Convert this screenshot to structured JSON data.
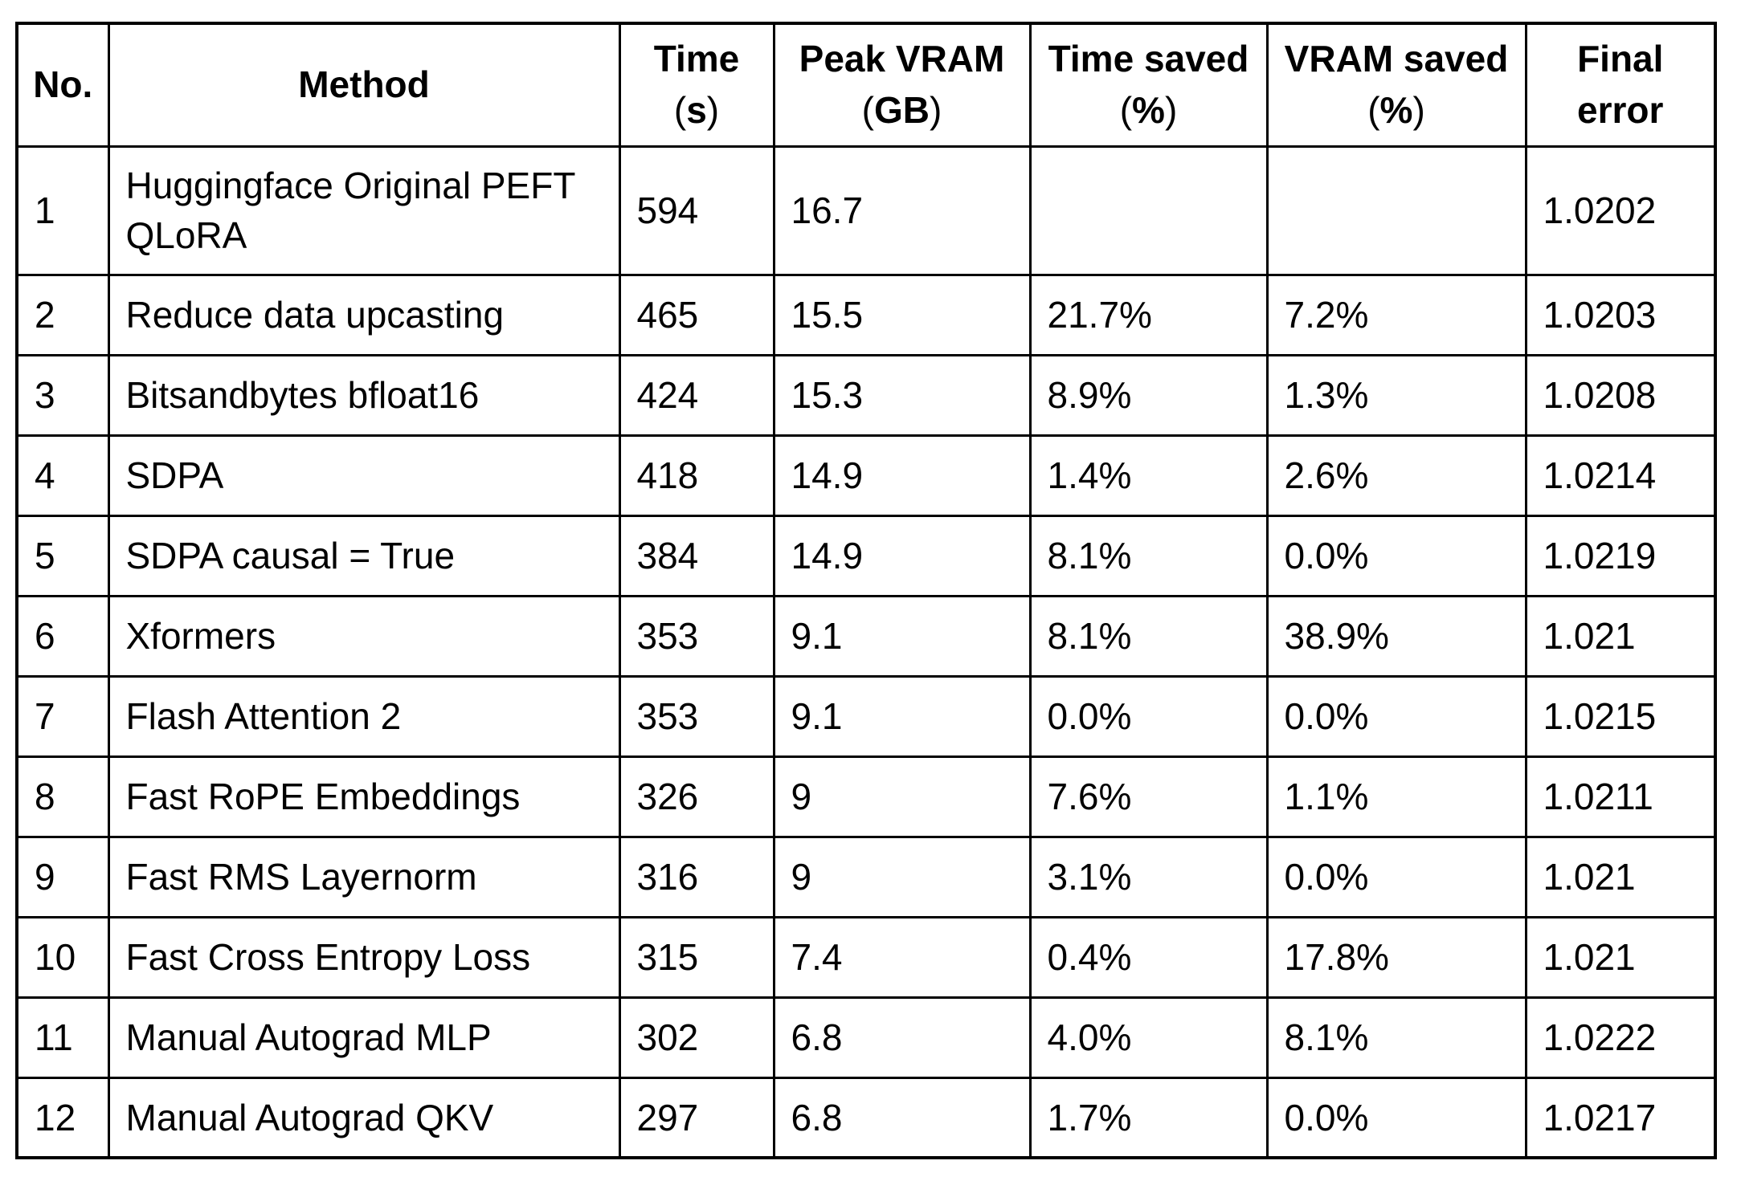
{
  "colors": {
    "border": "#000000",
    "text": "#000000",
    "background": "#ffffff"
  },
  "chart_data": {
    "type": "table",
    "columns": [
      {
        "id": "no",
        "line1": "No.",
        "line2": ""
      },
      {
        "id": "method",
        "line1": "Method",
        "line2": ""
      },
      {
        "id": "time",
        "line1": "Time",
        "line2": "(s)"
      },
      {
        "id": "peak_vram",
        "line1": "Peak VRAM",
        "line2": "(GB)"
      },
      {
        "id": "time_saved",
        "line1": "Time saved",
        "line2": "(%)"
      },
      {
        "id": "vram_saved",
        "line1": "VRAM saved",
        "line2": "(%)"
      },
      {
        "id": "final_error",
        "line1": "Final",
        "line2": "error"
      }
    ],
    "rows": [
      [
        "1",
        "Huggingface Original PEFT\nQLoRA",
        "594",
        "16.7",
        "",
        "",
        "1.0202"
      ],
      [
        "2",
        "Reduce data upcasting",
        "465",
        "15.5",
        "21.7%",
        "7.2%",
        "1.0203"
      ],
      [
        "3",
        "Bitsandbytes bfloat16",
        "424",
        "15.3",
        "8.9%",
        "1.3%",
        "1.0208"
      ],
      [
        "4",
        "SDPA",
        "418",
        "14.9",
        "1.4%",
        "2.6%",
        "1.0214"
      ],
      [
        "5",
        "SDPA causal = True",
        "384",
        "14.9",
        "8.1%",
        "0.0%",
        "1.0219"
      ],
      [
        "6",
        "Xformers",
        "353",
        "9.1",
        "8.1%",
        "38.9%",
        "1.021"
      ],
      [
        "7",
        "Flash Attention 2",
        "353",
        "9.1",
        "0.0%",
        "0.0%",
        "1.0215"
      ],
      [
        "8",
        "Fast RoPE Embeddings",
        "326",
        "9",
        "7.6%",
        "1.1%",
        "1.0211"
      ],
      [
        "9",
        "Fast RMS Layernorm",
        "316",
        "9",
        "3.1%",
        "0.0%",
        "1.021"
      ],
      [
        "10",
        "Fast Cross Entropy Loss",
        "315",
        "7.4",
        "0.4%",
        "17.8%",
        "1.021"
      ],
      [
        "11",
        "Manual Autograd MLP",
        "302",
        "6.8",
        "4.0%",
        "8.1%",
        "1.0222"
      ],
      [
        "12",
        "Manual Autograd QKV",
        "297",
        "6.8",
        "1.7%",
        "0.0%",
        "1.0217"
      ]
    ]
  }
}
